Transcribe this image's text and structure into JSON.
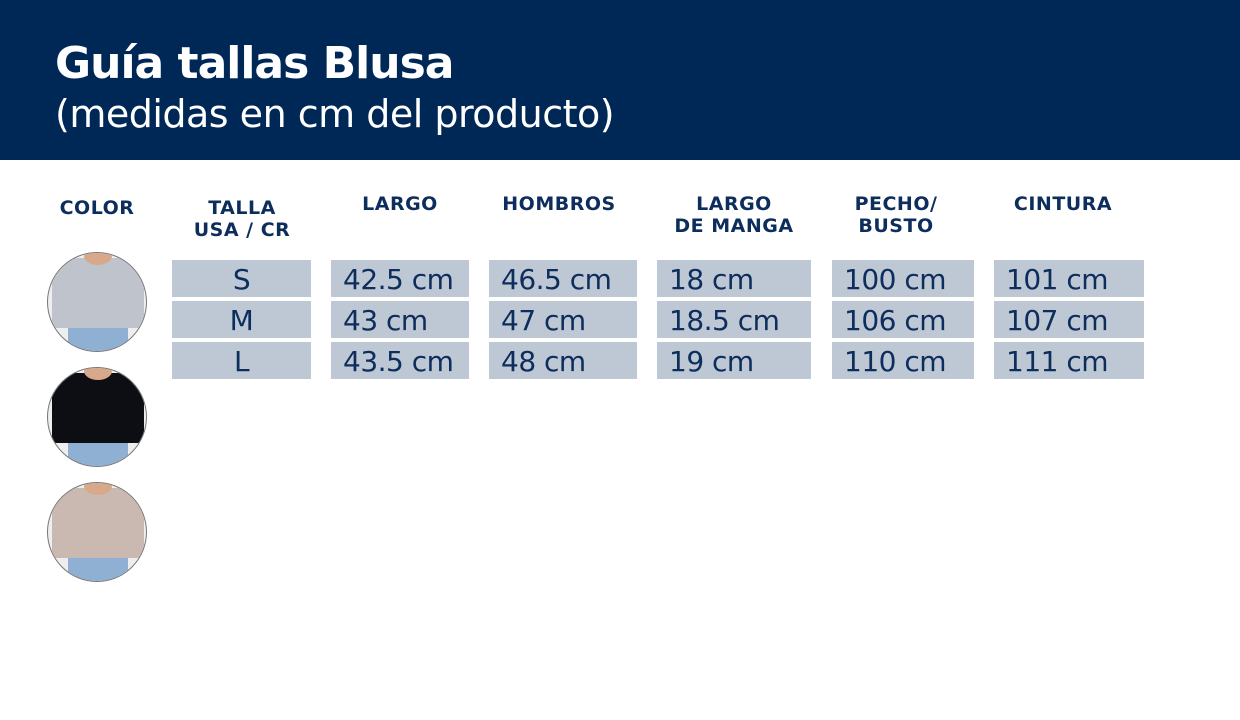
{
  "header": {
    "title": "Guía tallas Blusa",
    "subtitle": "(medidas en cm del producto)"
  },
  "columns": [
    "COLOR",
    "TALLA\nUSA / CR",
    "LARGO",
    "HOMBROS",
    "LARGO\nDE MANGA",
    "PECHO/\nBUSTO",
    "CINTURA"
  ],
  "colors": [
    {
      "name": "gray-shirt",
      "hex": "#bfc4cc"
    },
    {
      "name": "black-shirt",
      "hex": "#0c0e14"
    },
    {
      "name": "beige-shirt",
      "hex": "#c9b9b0"
    }
  ],
  "rows": [
    [
      "S",
      "42.5 cm",
      "46.5 cm",
      "18 cm",
      "100 cm",
      "101 cm"
    ],
    [
      "M",
      "43 cm",
      "47 cm",
      "18.5 cm",
      "106 cm",
      "107 cm"
    ],
    [
      "L",
      "43.5 cm",
      "48 cm",
      "19 cm",
      "110 cm",
      "111 cm"
    ]
  ]
}
